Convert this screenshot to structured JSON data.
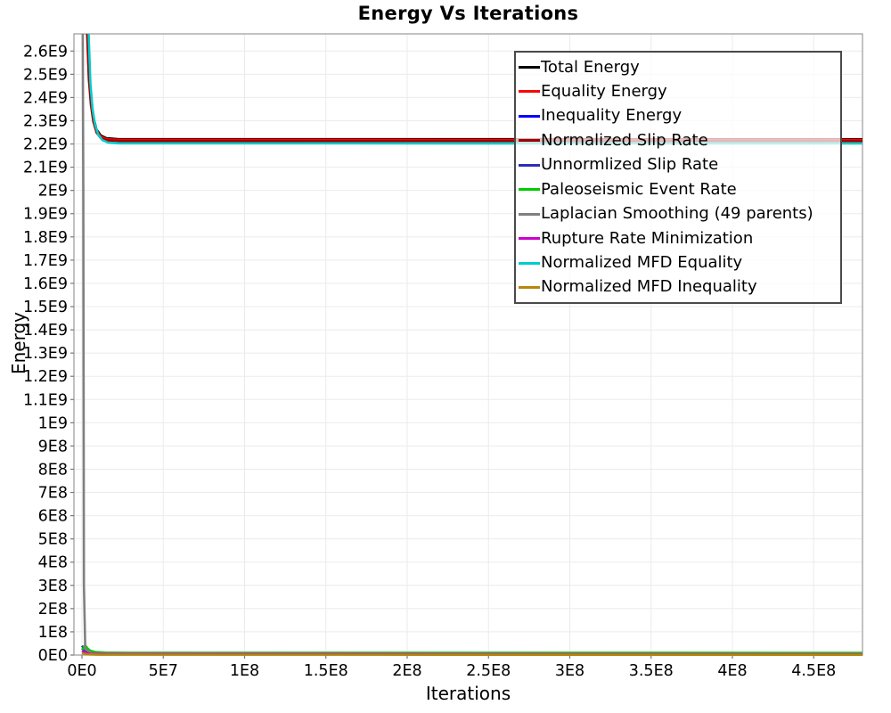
{
  "title": "Energy Vs Iterations",
  "chart_data": {
    "type": "line",
    "title": "Energy Vs Iterations",
    "xlabel": "Iterations",
    "ylabel": "Energy",
    "xlim": [
      0,
      480000000
    ],
    "ylim": [
      0,
      2674000000
    ],
    "grid": true,
    "grid_color": "#ebebeb",
    "frame_color": "#9a9a9a",
    "tick_color": "#777777",
    "legend_position": "inside-top-right",
    "x_ticks": {
      "values": [
        0,
        50000000,
        100000000,
        150000000,
        200000000,
        250000000,
        300000000,
        350000000,
        400000000,
        450000000
      ],
      "labels": [
        "0E0",
        "5E7",
        "1E8",
        "1.5E8",
        "2E8",
        "2.5E8",
        "3E8",
        "3.5E8",
        "4E8",
        "4.5E8"
      ]
    },
    "y_ticks": {
      "values": [
        0,
        100000000,
        200000000,
        300000000,
        400000000,
        500000000,
        600000000,
        700000000,
        800000000,
        900000000,
        1000000000,
        1100000000,
        1200000000,
        1300000000,
        1400000000,
        1500000000,
        1600000000,
        1700000000,
        1800000000,
        1900000000,
        2000000000,
        2100000000,
        2200000000,
        2300000000,
        2400000000,
        2500000000,
        2600000000
      ],
      "labels": [
        "0E0",
        "1E8",
        "2E8",
        "3E8",
        "4E8",
        "5E8",
        "6E8",
        "7E8",
        "8E8",
        "9E8",
        "1E9",
        "1.1E9",
        "1.2E9",
        "1.3E9",
        "1.4E9",
        "1.5E9",
        "1.6E9",
        "1.7E9",
        "1.8E9",
        "1.9E9",
        "2E9",
        "2.1E9",
        "2.2E9",
        "2.3E9",
        "2.4E9",
        "2.5E9",
        "2.6E9"
      ]
    },
    "series": [
      {
        "name": "Total Energy",
        "color": "#000000",
        "points": [
          [
            0,
            3600000000.0
          ],
          [
            2000000.0,
            3050000000.0
          ],
          [
            3200000.0,
            2720000000.0
          ],
          [
            4200000.0,
            2520000000.0
          ],
          [
            5500000.0,
            2400000000.0
          ],
          [
            7000000.0,
            2315000000.0
          ],
          [
            9000000.0,
            2262000000.0
          ],
          [
            11500000.0,
            2237000000.0
          ],
          [
            15000000.0,
            2225000000.0
          ],
          [
            22000000.0,
            2221000000.0
          ],
          [
            480000000.0,
            2220000000.0
          ]
        ]
      },
      {
        "name": "Equality Energy",
        "color": "#ff0000",
        "points": [
          [
            0,
            3570000000.0
          ],
          [
            2000000.0,
            3020000000.0
          ],
          [
            3200000.0,
            2700000000.0
          ],
          [
            4200000.0,
            2500000000.0
          ],
          [
            5500000.0,
            2385000000.0
          ],
          [
            7000000.0,
            2305000000.0
          ],
          [
            9000000.0,
            2256000000.0
          ],
          [
            11500000.0,
            2232000000.0
          ],
          [
            15000000.0,
            2221000000.0
          ],
          [
            22000000.0,
            2218000000.0
          ],
          [
            480000000.0,
            2217000000.0
          ]
        ]
      },
      {
        "name": "Inequality Energy",
        "color": "#0000ff",
        "points": [
          [
            0,
            30000000.0
          ],
          [
            3000000.0,
            15000000.0
          ],
          [
            8000000.0,
            8000000.0
          ],
          [
            20000000.0,
            5000000.0
          ],
          [
            480000000.0,
            4000000.0
          ]
        ]
      },
      {
        "name": "Normalized Slip Rate",
        "color": "#a00000",
        "points": [
          [
            0,
            3530000000.0
          ],
          [
            2000000.0,
            2990000000.0
          ],
          [
            3200000.0,
            2670000000.0
          ],
          [
            4200000.0,
            2480000000.0
          ],
          [
            5500000.0,
            2370000000.0
          ],
          [
            7000000.0,
            2295000000.0
          ],
          [
            9000000.0,
            2249000000.0
          ],
          [
            11500000.0,
            2226000000.0
          ],
          [
            15000000.0,
            2216000000.0
          ],
          [
            22000000.0,
            2213000000.0
          ],
          [
            480000000.0,
            2212000000.0
          ]
        ]
      },
      {
        "name": "Unnormlized Slip Rate",
        "color": "#2e2eb8",
        "points": [
          [
            0,
            40000000.0
          ],
          [
            2000000.0,
            20000000.0
          ],
          [
            6000000.0,
            9000000.0
          ],
          [
            20000000.0,
            6000000.0
          ],
          [
            480000000.0,
            5000000.0
          ]
        ]
      },
      {
        "name": "Paleoseismic Event Rate",
        "color": "#00cc00",
        "points": [
          [
            0,
            22000000.0
          ],
          [
            2000000.0,
            42000000.0
          ],
          [
            3500000.0,
            28000000.0
          ],
          [
            5000000.0,
            19000000.0
          ],
          [
            8000000.0,
            13500000.0
          ],
          [
            15000000.0,
            10500000.0
          ],
          [
            30000000.0,
            10000000.0
          ],
          [
            480000000.0,
            9500000.0
          ]
        ]
      },
      {
        "name": "Laplacian Smoothing (49 parents)",
        "color": "#808080",
        "points": [
          [
            0,
            3600000000.0
          ],
          [
            800000.0,
            2000000000.0
          ],
          [
            1200000.0,
            300000000.0
          ],
          [
            2000000.0,
            25000000.0
          ],
          [
            6000000.0,
            8000000.0
          ],
          [
            480000000.0,
            5000000.0
          ]
        ]
      },
      {
        "name": "Rupture Rate Minimization",
        "color": "#cc00cc",
        "points": [
          [
            0,
            18000000.0
          ],
          [
            2000000.0,
            10000000.0
          ],
          [
            5000000.0,
            5000000.0
          ],
          [
            15000000.0,
            3000000.0
          ],
          [
            480000000.0,
            2500000.0
          ]
        ]
      },
      {
        "name": "Normalized MFD Equality",
        "color": "#00cccc",
        "points": [
          [
            0,
            3500000000.0
          ],
          [
            3000000.0,
            2960000000.0
          ],
          [
            4200000.0,
            2650000000.0
          ],
          [
            5200000.0,
            2460000000.0
          ],
          [
            6500000.0,
            2350000000.0
          ],
          [
            8000000.0,
            2285000000.0
          ],
          [
            10000000.0,
            2240000000.0
          ],
          [
            12500000.0,
            2217000000.0
          ],
          [
            16000000.0,
            2206000000.0
          ],
          [
            23000000.0,
            2203000000.0
          ],
          [
            480000000.0,
            2202000000.0
          ]
        ]
      },
      {
        "name": "Normalized MFD Inequality",
        "color": "#b8860b",
        "points": [
          [
            0,
            8000000.0
          ],
          [
            3000000.0,
            3000000.0
          ],
          [
            10000000.0,
            1500000.0
          ],
          [
            480000000.0,
            1200000.0
          ]
        ]
      }
    ]
  }
}
